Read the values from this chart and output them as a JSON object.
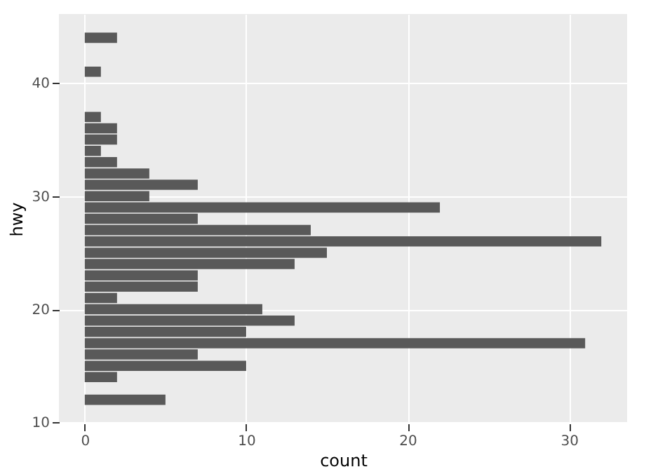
{
  "chart_data": {
    "type": "bar",
    "orientation": "horizontal",
    "xlabel": "count",
    "ylabel": "hwy",
    "x": [
      12,
      14,
      15,
      16,
      17,
      18,
      19,
      20,
      21,
      22,
      23,
      24,
      25,
      26,
      27,
      28,
      29,
      30,
      31,
      32,
      33,
      34,
      35,
      36,
      37,
      41,
      44
    ],
    "values": [
      5,
      2,
      10,
      7,
      31,
      10,
      13,
      11,
      2,
      7,
      7,
      13,
      15,
      32,
      14,
      7,
      22,
      4,
      7,
      4,
      2,
      1,
      2,
      2,
      1,
      1,
      2
    ],
    "color": "#595959",
    "xlim": [
      -1.6,
      33.6
    ],
    "xticks": [
      0,
      10,
      20,
      30
    ],
    "ylim": [
      9.9,
      46.1
    ],
    "yticks": [
      10,
      20,
      30,
      40
    ],
    "grid": true
  }
}
